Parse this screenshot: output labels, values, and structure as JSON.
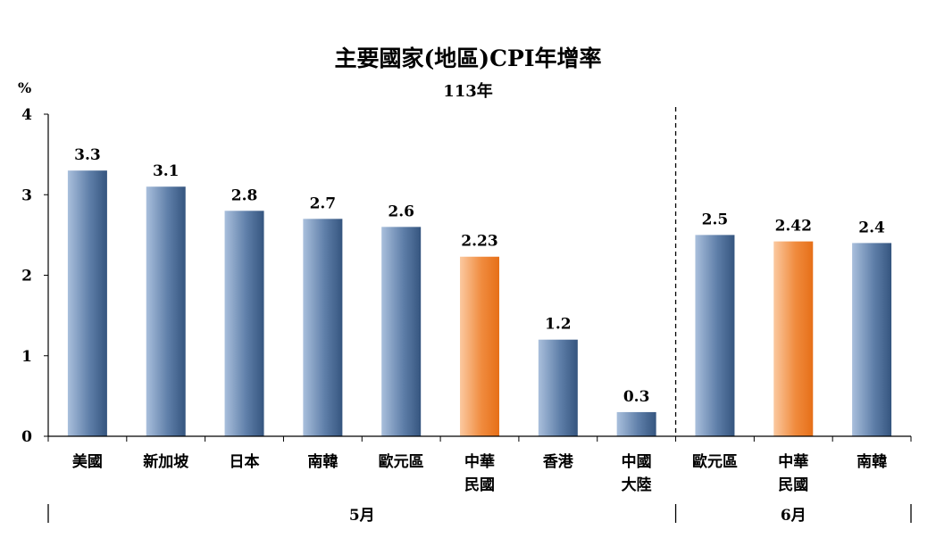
{
  "chart_data": {
    "type": "bar",
    "title": "主要國家(地區)CPI年增率",
    "subtitle": "113年",
    "ylabel": "%",
    "ylim": [
      0,
      4
    ],
    "yticks": [
      "0",
      "1",
      "2",
      "3",
      "4"
    ],
    "grid": false,
    "legend": "none",
    "categories": [
      [
        "美國"
      ],
      [
        "新加坡"
      ],
      [
        "日本"
      ],
      [
        "南韓"
      ],
      [
        "歐元區"
      ],
      [
        "中華",
        "民國"
      ],
      [
        "香港"
      ],
      [
        "中國",
        "大陸"
      ],
      [
        "歐元區"
      ],
      [
        "中華",
        "民國"
      ],
      [
        "南韓"
      ]
    ],
    "values": [
      3.3,
      3.1,
      2.8,
      2.7,
      2.6,
      2.23,
      1.2,
      0.3,
      2.5,
      2.42,
      2.4
    ],
    "value_labels": [
      "3.3",
      "3.1",
      "2.8",
      "2.7",
      "2.6",
      "2.23",
      "1.2",
      "0.3",
      "2.5",
      "2.42",
      "2.4"
    ],
    "highlight": [
      false,
      false,
      false,
      false,
      false,
      true,
      false,
      false,
      false,
      true,
      false
    ],
    "groups": [
      {
        "label": "5月",
        "count": 8
      },
      {
        "label": "6月",
        "count": 3
      }
    ],
    "colors": {
      "blue_dark": "#35557f",
      "blue_light": "#a9bfdc",
      "orange_dark": "#e66f18",
      "orange_light": "#fbc9a0"
    }
  }
}
